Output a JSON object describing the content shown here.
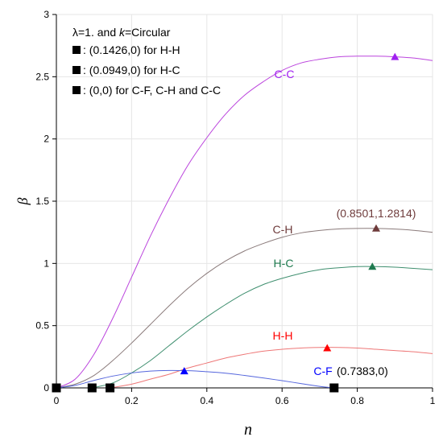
{
  "chart_data": {
    "type": "line",
    "xlabel": "n",
    "ylabel": "β",
    "xlim": [
      0,
      1
    ],
    "ylim": [
      0,
      3
    ],
    "xticks": [
      "0",
      "0.2",
      "0.4",
      "0.6",
      "0.8",
      "1"
    ],
    "yticks": [
      "0",
      "0.5",
      "1",
      "1.5",
      "2",
      "2.5",
      "3"
    ],
    "legend": {
      "title_parts": [
        "λ=1. and ",
        "k",
        "=Circular"
      ],
      "entries": [
        ": (0.1426,0) for H-H",
        ": (0.0949,0) for H-C",
        ": (0,0) for C-F, C-H and C-C"
      ]
    },
    "series": [
      {
        "name": "C-C",
        "color": "#bb44dd",
        "x": [
          0,
          0.05,
          0.1,
          0.15,
          0.2,
          0.25,
          0.3,
          0.35,
          0.4,
          0.45,
          0.5,
          0.55,
          0.6,
          0.65,
          0.7,
          0.75,
          0.8,
          0.85,
          0.9,
          0.95,
          1
        ],
        "y": [
          0,
          0.07,
          0.27,
          0.56,
          0.89,
          1.22,
          1.52,
          1.79,
          2.01,
          2.2,
          2.35,
          2.46,
          2.55,
          2.61,
          2.64,
          2.66,
          2.665,
          2.665,
          2.66,
          2.65,
          2.63
        ],
        "peak": [
          0.9,
          2.66
        ]
      },
      {
        "name": "C-H",
        "color": "#8a7a7a",
        "x": [
          0,
          0.05,
          0.1,
          0.15,
          0.2,
          0.25,
          0.3,
          0.35,
          0.4,
          0.45,
          0.5,
          0.55,
          0.6,
          0.65,
          0.7,
          0.75,
          0.8,
          0.85,
          0.9,
          0.95,
          1
        ],
        "y": [
          0,
          0.03,
          0.1,
          0.22,
          0.36,
          0.51,
          0.66,
          0.8,
          0.92,
          1.02,
          1.1,
          1.16,
          1.21,
          1.245,
          1.265,
          1.277,
          1.281,
          1.281,
          1.276,
          1.266,
          1.25
        ],
        "peak": [
          0.8501,
          1.2814
        ],
        "peak_label": "(0.8501,1.2814)",
        "peak_color": "#6e3b3b"
      },
      {
        "name": "H-C",
        "color": "#3f8f6f",
        "x": [
          0.0949,
          0.15,
          0.2,
          0.25,
          0.3,
          0.35,
          0.4,
          0.45,
          0.5,
          0.55,
          0.6,
          0.65,
          0.7,
          0.75,
          0.8,
          0.85,
          0.9,
          0.95,
          1
        ],
        "y": [
          0,
          0.04,
          0.12,
          0.22,
          0.34,
          0.46,
          0.57,
          0.67,
          0.76,
          0.83,
          0.88,
          0.92,
          0.95,
          0.965,
          0.975,
          0.975,
          0.97,
          0.96,
          0.95
        ],
        "peak": [
          0.84,
          0.975
        ]
      },
      {
        "name": "H-H",
        "color": "#ee7777",
        "x": [
          0.1426,
          0.2,
          0.25,
          0.3,
          0.35,
          0.4,
          0.45,
          0.5,
          0.55,
          0.6,
          0.65,
          0.7,
          0.75,
          0.8,
          0.85,
          0.9,
          0.95,
          1
        ],
        "y": [
          0,
          0.03,
          0.07,
          0.11,
          0.16,
          0.2,
          0.24,
          0.27,
          0.295,
          0.31,
          0.32,
          0.325,
          0.325,
          0.32,
          0.31,
          0.3,
          0.29,
          0.275
        ],
        "peak": [
          0.72,
          0.32
        ]
      },
      {
        "name": "C-F",
        "color": "#5566dd",
        "x": [
          0,
          0.05,
          0.1,
          0.15,
          0.2,
          0.25,
          0.3,
          0.35,
          0.4,
          0.45,
          0.5,
          0.55,
          0.6,
          0.65,
          0.7,
          0.7383
        ],
        "y": [
          0,
          0.02,
          0.06,
          0.095,
          0.12,
          0.135,
          0.14,
          0.138,
          0.13,
          0.118,
          0.1,
          0.08,
          0.058,
          0.035,
          0.012,
          0
        ],
        "peak": [
          0.34,
          0.135
        ],
        "peak_color": "#0000ff",
        "end_label": "(0.7383,0)"
      }
    ],
    "label_colors": {
      "C-C": "#a020f0",
      "C-H": "#6e3b3b",
      "H-C": "#1f7a4f",
      "H-H": "#ff0000",
      "C-F": "#0000ff"
    },
    "markers": {
      "squares": [
        [
          0,
          0
        ],
        [
          0.0949,
          0
        ],
        [
          0.1426,
          0
        ],
        [
          0.7383,
          0
        ]
      ]
    }
  }
}
